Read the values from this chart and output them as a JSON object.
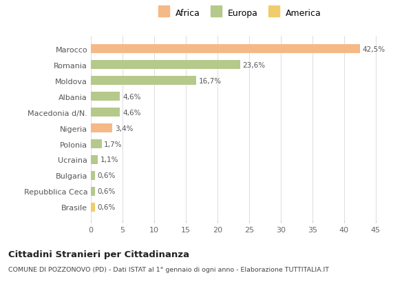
{
  "categories": [
    "Brasile",
    "Repubblica Ceca",
    "Bulgaria",
    "Ucraina",
    "Polonia",
    "Nigeria",
    "Macedonia d/N.",
    "Albania",
    "Moldova",
    "Romania",
    "Marocco"
  ],
  "values": [
    0.6,
    0.6,
    0.6,
    1.1,
    1.7,
    3.4,
    4.6,
    4.6,
    16.7,
    23.6,
    42.5
  ],
  "labels": [
    "0,6%",
    "0,6%",
    "0,6%",
    "1,1%",
    "1,7%",
    "3,4%",
    "4,6%",
    "4,6%",
    "16,7%",
    "23,6%",
    "42,5%"
  ],
  "bar_colors": {
    "Marocco": "#f5b887",
    "Romania": "#b5c98a",
    "Moldova": "#b5c98a",
    "Albania": "#b5c98a",
    "Macedonia d/N.": "#b5c98a",
    "Nigeria": "#f5b887",
    "Polonia": "#b5c98a",
    "Ucraina": "#b5c98a",
    "Bulgaria": "#b5c98a",
    "Repubblica Ceca": "#b5c98a",
    "Brasile": "#f0cc6a"
  },
  "legend": [
    {
      "label": "Africa",
      "color": "#f5b887"
    },
    {
      "label": "Europa",
      "color": "#b5c98a"
    },
    {
      "label": "America",
      "color": "#f0cc6a"
    }
  ],
  "xlim": [
    0,
    47
  ],
  "xticks": [
    0,
    5,
    10,
    15,
    20,
    25,
    30,
    35,
    40,
    45
  ],
  "title": "Cittadini Stranieri per Cittadinanza",
  "subtitle": "COMUNE DI POZZONOVO (PD) - Dati ISTAT al 1° gennaio di ogni anno - Elaborazione TUTTITALIA.IT",
  "bg_color": "#ffffff",
  "grid_color": "#e0e0e0"
}
